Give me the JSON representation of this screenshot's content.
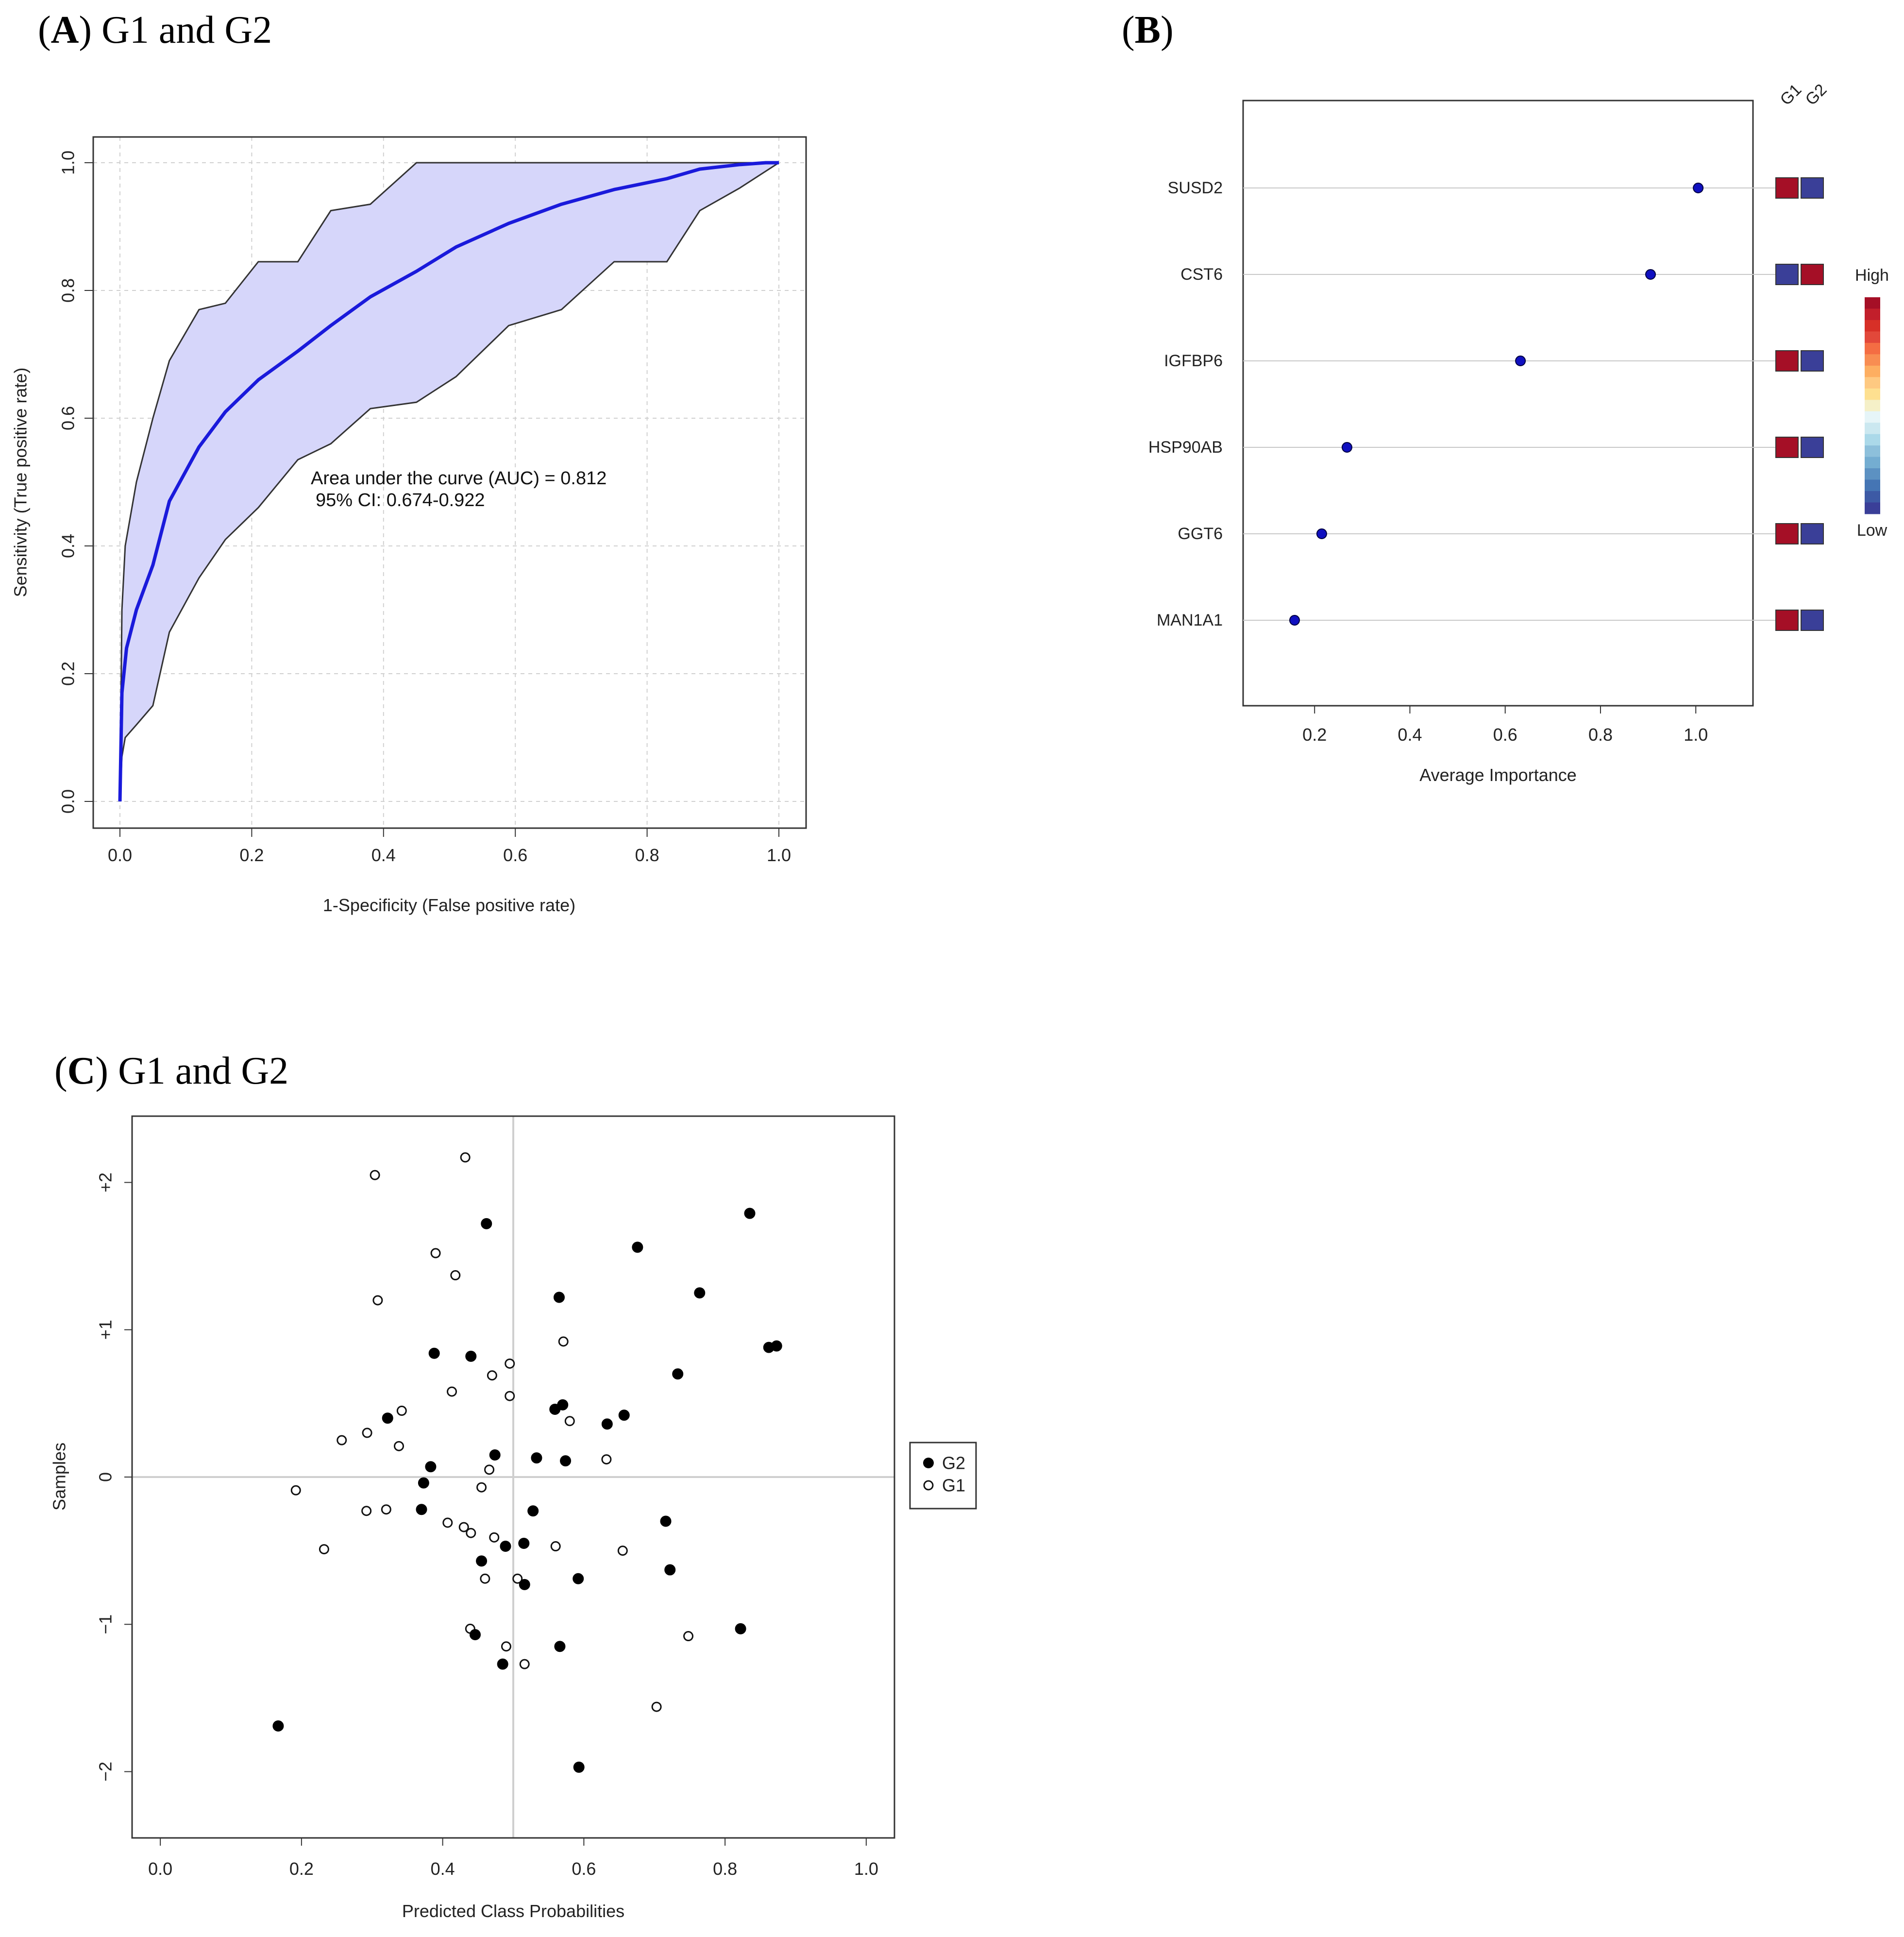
{
  "panels": {
    "a": {
      "letter": "A",
      "rest": "G1 and G2"
    },
    "b": {
      "letter": "B",
      "rest": ""
    },
    "c": {
      "letter": "C",
      "rest": "G1 and G2"
    }
  },
  "colors": {
    "roc_line": "#1a1adb",
    "roc_band": "#d6d6fa",
    "band_edge": "#333333",
    "high": "#a50f26",
    "low": "#3a3f98",
    "point": "#1010c0"
  },
  "chart_data": [
    {
      "type": "line",
      "title": "G1 and G2",
      "xlabel": "1-Specificity (False positive rate)",
      "ylabel": "Sensitivity (True positive rate)",
      "xlim": [
        0,
        1
      ],
      "ylim": [
        0,
        1
      ],
      "xticks": [
        "0.0",
        "0.2",
        "0.4",
        "0.6",
        "0.8",
        "1.0"
      ],
      "yticks": [
        "0.0",
        "0.2",
        "0.4",
        "0.6",
        "0.8",
        "1.0"
      ],
      "grid": true,
      "annotations": [
        "Area under the curve (AUC) = 0.812",
        "95% CI: 0.674-0.922"
      ],
      "series": [
        {
          "name": "ROC",
          "x": [
            0,
            0.003,
            0.01,
            0.025,
            0.05,
            0.075,
            0.12,
            0.16,
            0.21,
            0.27,
            0.32,
            0.38,
            0.45,
            0.51,
            0.59,
            0.67,
            0.75,
            0.83,
            0.88,
            0.94,
            0.98,
            1.0
          ],
          "y": [
            0,
            0.17,
            0.24,
            0.3,
            0.37,
            0.47,
            0.555,
            0.61,
            0.66,
            0.705,
            0.745,
            0.79,
            0.83,
            0.868,
            0.905,
            0.935,
            0.958,
            0.975,
            0.99,
            0.997,
            1.0,
            1.0
          ]
        },
        {
          "name": "CI upper",
          "x": [
            0,
            0.003,
            0.008,
            0.025,
            0.05,
            0.075,
            0.12,
            0.16,
            0.21,
            0.27,
            0.32,
            0.38,
            0.45,
            0.51,
            0.59,
            0.67,
            0.75,
            0.83,
            0.88,
            0.94,
            1.0
          ],
          "y": [
            0,
            0.3,
            0.4,
            0.5,
            0.6,
            0.69,
            0.77,
            0.78,
            0.845,
            0.845,
            0.925,
            0.935,
            1.0,
            1.0,
            1.0,
            1.0,
            1.0,
            1.0,
            1.0,
            1.0,
            1.0
          ]
        },
        {
          "name": "CI lower",
          "x": [
            0,
            0.003,
            0.008,
            0.025,
            0.05,
            0.075,
            0.12,
            0.16,
            0.21,
            0.27,
            0.32,
            0.38,
            0.45,
            0.51,
            0.59,
            0.67,
            0.75,
            0.83,
            0.88,
            0.94,
            1.0
          ],
          "y": [
            0,
            0.07,
            0.1,
            0.12,
            0.15,
            0.265,
            0.35,
            0.41,
            0.46,
            0.535,
            0.56,
            0.615,
            0.625,
            0.665,
            0.745,
            0.77,
            0.845,
            0.845,
            0.925,
            0.96,
            1.0
          ]
        }
      ]
    },
    {
      "type": "scatter",
      "xlabel": "Average Importance",
      "xlim": [
        0.05,
        1.12
      ],
      "xticks": [
        "0.2",
        "0.4",
        "0.6",
        "0.8",
        "1.0"
      ],
      "categories": [
        "SUSD2",
        "CST6",
        "IGFBP6",
        "HSP90AB",
        "GGT6",
        "MAN1A1"
      ],
      "values": [
        1.005,
        0.905,
        0.632,
        0.268,
        0.215,
        0.158
      ],
      "group_labels": [
        "G1",
        "G2"
      ],
      "heat": [
        [
          "High",
          "Low"
        ],
        [
          "Low",
          "High"
        ],
        [
          "High",
          "Low"
        ],
        [
          "High",
          "Low"
        ],
        [
          "High",
          "Low"
        ],
        [
          "High",
          "Low"
        ]
      ],
      "colorbar": {
        "top_label": "High",
        "bottom_label": "Low"
      }
    },
    {
      "type": "scatter",
      "title": "G1 and G2",
      "xlabel": "Predicted Class Probabilities",
      "ylabel": "Samples",
      "xlim": [
        -0.04,
        1.04
      ],
      "ylim": [
        -2.45,
        2.45
      ],
      "xticks": [
        "0.0",
        "0.2",
        "0.4",
        "0.6",
        "0.8",
        "1.0"
      ],
      "yticks": [
        "−2",
        "−1",
        "0",
        "+1",
        "+2"
      ],
      "reference_lines": {
        "x": 0.5,
        "y": 0
      },
      "legend": [
        "G2",
        "G1"
      ],
      "series": [
        {
          "name": "G2",
          "x": [
            0.167,
            0.322,
            0.37,
            0.373,
            0.383,
            0.388,
            0.44,
            0.446,
            0.455,
            0.462,
            0.474,
            0.485,
            0.489,
            0.515,
            0.516,
            0.528,
            0.533,
            0.559,
            0.565,
            0.566,
            0.57,
            0.574,
            0.592,
            0.593,
            0.633,
            0.657,
            0.676,
            0.716,
            0.722,
            0.733,
            0.764,
            0.822,
            0.835,
            0.862,
            0.873
          ],
          "y": [
            -1.69,
            0.4,
            -0.22,
            -0.04,
            0.07,
            0.84,
            0.82,
            -1.07,
            -0.57,
            1.72,
            0.15,
            -1.27,
            -0.47,
            -0.45,
            -0.73,
            -0.23,
            0.13,
            0.46,
            1.22,
            -1.15,
            0.49,
            0.11,
            -0.69,
            -1.97,
            0.36,
            0.42,
            1.56,
            -0.3,
            -0.63,
            0.7,
            1.25,
            -1.03,
            1.79,
            0.88,
            0.89
          ]
        },
        {
          "name": "G1",
          "x": [
            0.192,
            0.232,
            0.257,
            0.292,
            0.293,
            0.304,
            0.308,
            0.32,
            0.338,
            0.342,
            0.39,
            0.407,
            0.413,
            0.418,
            0.43,
            0.432,
            0.439,
            0.44,
            0.455,
            0.46,
            0.466,
            0.47,
            0.473,
            0.49,
            0.495,
            0.495,
            0.506,
            0.516,
            0.56,
            0.571,
            0.58,
            0.632,
            0.655,
            0.703,
            0.748
          ],
          "y": [
            -0.09,
            -0.49,
            0.25,
            -0.23,
            0.3,
            2.05,
            1.2,
            -0.22,
            0.21,
            0.45,
            1.52,
            -0.31,
            0.58,
            1.37,
            -0.34,
            2.17,
            -1.03,
            -0.38,
            -0.07,
            -0.69,
            0.05,
            0.69,
            -0.41,
            -1.15,
            0.77,
            0.55,
            -0.69,
            -1.27,
            -0.47,
            0.92,
            0.38,
            0.12,
            -0.5,
            -1.56,
            -1.08
          ]
        }
      ]
    }
  ]
}
